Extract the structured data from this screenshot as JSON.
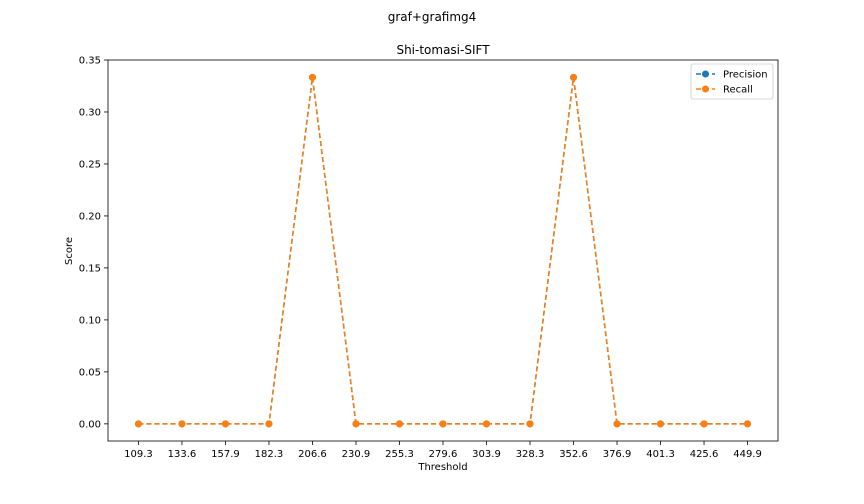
{
  "figure": {
    "suptitle": "graf+grafimg4"
  },
  "chart_data": {
    "type": "line",
    "title": "Shi-tomasi-SIFT",
    "xlabel": "Threshold",
    "ylabel": "Score",
    "categories": [
      "109.3",
      "133.6",
      "157.9",
      "182.3",
      "206.6",
      "230.9",
      "255.3",
      "279.6",
      "303.9",
      "328.3",
      "352.6",
      "376.9",
      "401.3",
      "425.6",
      "449.9"
    ],
    "ylim": [
      -0.0165,
      0.35
    ],
    "yticks": [
      "0.00",
      "0.05",
      "0.10",
      "0.15",
      "0.20",
      "0.25",
      "0.30",
      "0.35"
    ],
    "ytick_values": [
      0,
      0.05,
      0.1,
      0.15,
      0.2,
      0.25,
      0.3,
      0.35
    ],
    "grid": false,
    "legend_position": "top-right",
    "series": [
      {
        "name": "Precision",
        "color": "#1f77b4",
        "marker": "circle",
        "linestyle": "dashed",
        "values": [
          0,
          0,
          0,
          0,
          0.3333,
          0,
          0,
          0,
          0,
          0,
          0.3333,
          0,
          0,
          0,
          0
        ]
      },
      {
        "name": "Recall",
        "color": "#ff7f0e",
        "marker": "circle",
        "linestyle": "dashed",
        "values": [
          0,
          0,
          0,
          0,
          0.3333,
          0,
          0,
          0,
          0,
          0,
          0.3333,
          0,
          0,
          0,
          0
        ]
      }
    ]
  }
}
